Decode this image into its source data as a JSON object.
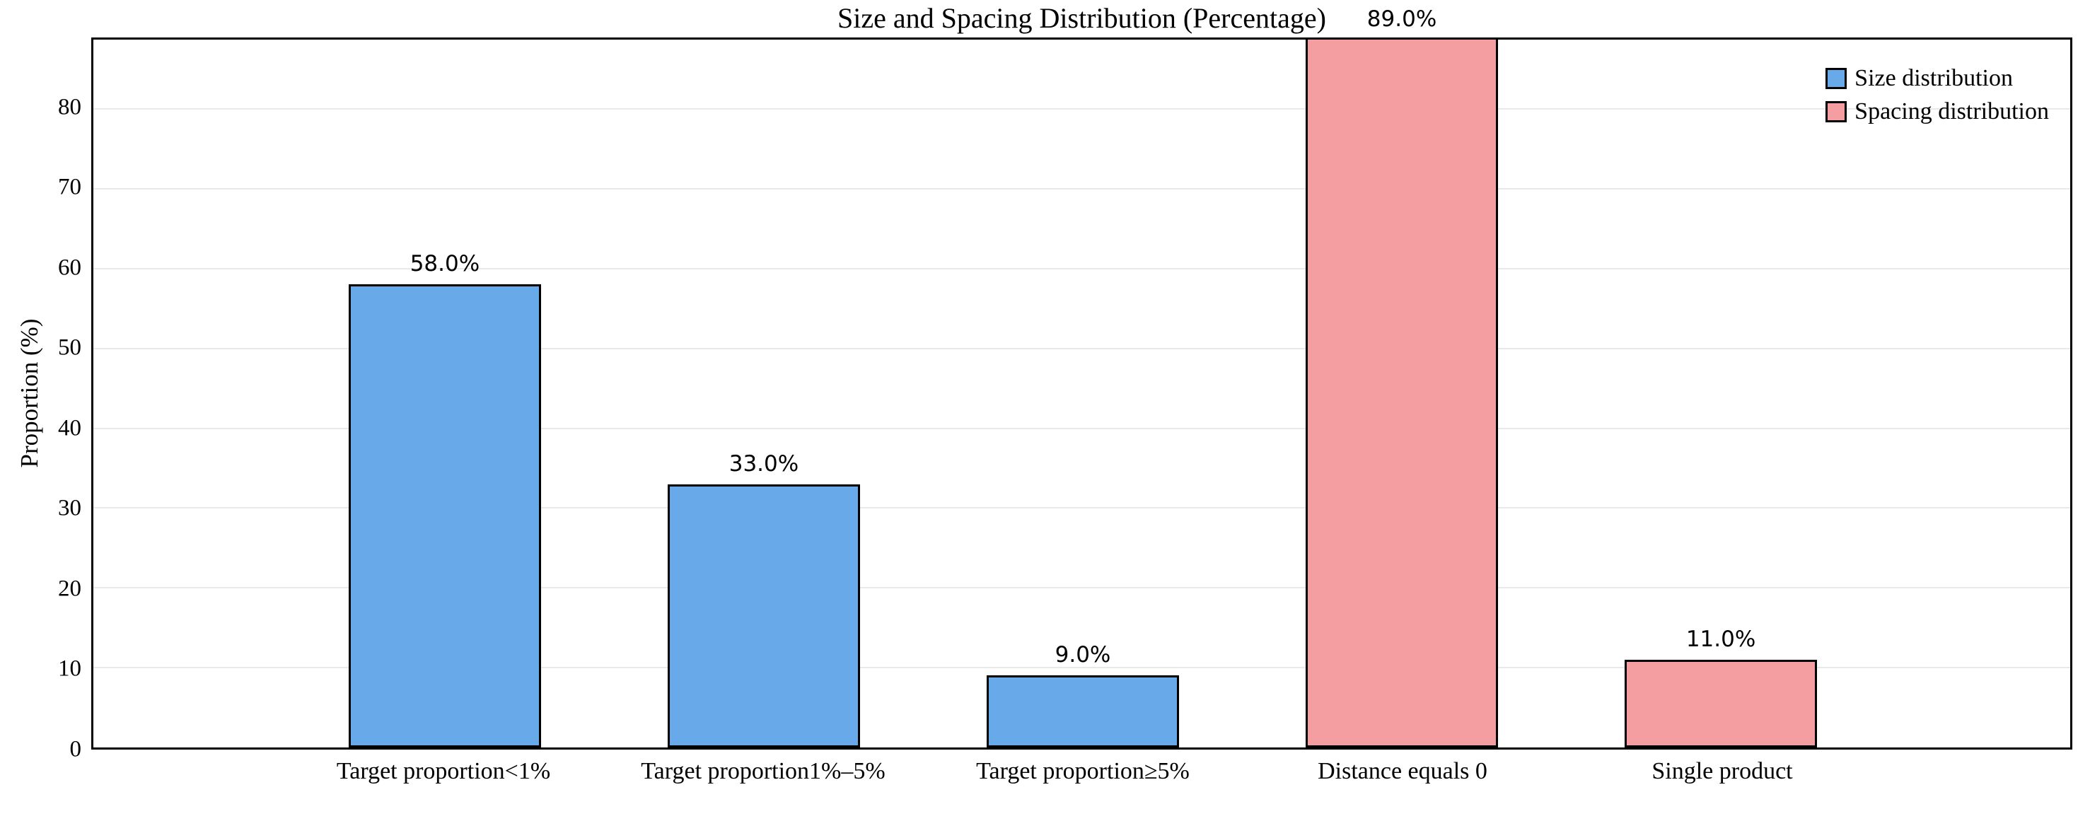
{
  "chart_data": {
    "type": "bar",
    "title": "Size and Spacing Distribution (Percentage)",
    "ylabel": "Proportion (%)",
    "xlabel": "",
    "categories": [
      "Target proportion<1%",
      "Target proportion1%–5%",
      "Target proportion≥5%",
      "Distance equals 0",
      "Single product"
    ],
    "series": [
      {
        "name": "Size distribution",
        "color": "#68AAE9"
      },
      {
        "name": "Spacing distribution",
        "color": "#F59EA1"
      }
    ],
    "bars": [
      {
        "category_index": 0,
        "series": "Size distribution",
        "value": 58.0,
        "label": "58.0%"
      },
      {
        "category_index": 1,
        "series": "Size distribution",
        "value": 33.0,
        "label": "33.0%"
      },
      {
        "category_index": 2,
        "series": "Size distribution",
        "value": 9.0,
        "label": "9.0%"
      },
      {
        "category_index": 3,
        "series": "Spacing distribution",
        "value": 89.0,
        "label": "89.0%"
      },
      {
        "category_index": 4,
        "series": "Spacing distribution",
        "value": 11.0,
        "label": "11.0%"
      }
    ],
    "yticks": [
      0,
      10,
      20,
      30,
      40,
      50,
      60,
      70,
      80
    ],
    "ylim": [
      0,
      88.7
    ],
    "grid": "horizontal",
    "gridline_color": "#e9e9e9",
    "bar_edge_color": "#000000",
    "axis_color": "#000000",
    "legend_position": "upper-right-inside",
    "legend_frame": false
  }
}
